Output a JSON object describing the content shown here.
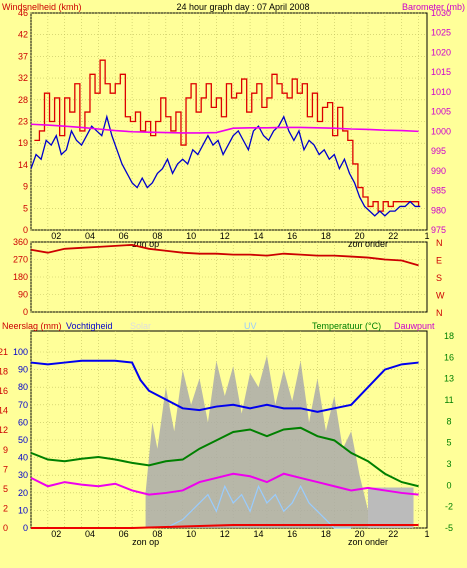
{
  "header": {
    "title": "24 hour graph day : 07 April 2008",
    "left_label": "Windsnelheid (kmh)",
    "right_label": "Barometer (mb)",
    "colors": {
      "title": "#000000",
      "wind_label": "#cc0000",
      "baro_label": "#cc00cc"
    }
  },
  "chart_data": [
    {
      "type": "line",
      "panel": "wind-barometer",
      "xlabel": "",
      "ylabel": "Windsnelheid (kmh)",
      "y2label": "Barometer (mb)",
      "x_ticks": [
        "02",
        "04",
        "06",
        "08",
        "10",
        "12",
        "14",
        "16",
        "18",
        "20",
        "22",
        "1"
      ],
      "y_ticks": [
        "0",
        "5",
        "9",
        "14",
        "19",
        "23",
        "28",
        "32",
        "37",
        "42",
        "46"
      ],
      "y_lim": [
        0,
        46
      ],
      "y2_ticks": [
        "975",
        "980",
        "985",
        "990",
        "995",
        "1000",
        "1005",
        "1010",
        "1015",
        "1020",
        "1025",
        "1030"
      ],
      "y2_lim": [
        975,
        1030
      ],
      "series": [
        {
          "key": "gust",
          "color": "#dd0000",
          "axis": "left",
          "step": true,
          "x": [
            0.2,
            0.5,
            0.8,
            1.1,
            1.4,
            1.7,
            2.0,
            2.3,
            2.6,
            2.9,
            3.2,
            3.5,
            3.8,
            4.1,
            4.4,
            4.7,
            5.0,
            5.3,
            5.6,
            5.9,
            6.2,
            6.5,
            6.8,
            7.1,
            7.4,
            7.7,
            8.0,
            8.3,
            8.6,
            8.9,
            9.2,
            9.5,
            9.8,
            10.1,
            10.4,
            10.7,
            11.0,
            11.3,
            11.6,
            11.9,
            12.2,
            12.5,
            12.8,
            13.1,
            13.4,
            13.7,
            14.0,
            14.3,
            14.6,
            14.9,
            15.2,
            15.5,
            15.8,
            16.1,
            16.4,
            16.7,
            17.0,
            17.3,
            17.6,
            17.9,
            18.2,
            18.5,
            18.8,
            19.1,
            19.4,
            19.7,
            20.0,
            20.3,
            20.6,
            20.9,
            21.2,
            21.5,
            21.8,
            22.1,
            22.4,
            22.7,
            23.0
          ],
          "y": [
            19,
            21,
            29,
            23,
            28,
            20,
            28,
            25,
            31,
            21,
            25,
            33,
            29,
            36,
            31,
            29,
            31,
            33,
            24,
            23,
            25,
            21,
            23,
            20,
            23,
            28,
            24,
            21,
            25,
            18,
            28,
            31,
            25,
            28,
            31,
            26,
            28,
            24,
            31,
            28,
            29,
            32,
            25,
            29,
            31,
            26,
            28,
            33,
            31,
            29,
            28,
            32,
            29,
            31,
            24,
            29,
            23,
            26,
            27,
            20,
            26,
            21,
            19,
            14,
            9,
            7,
            5,
            6,
            4,
            6,
            5,
            6,
            6,
            6,
            6,
            6,
            5
          ]
        },
        {
          "key": "average",
          "color": "#0000cc",
          "axis": "left",
          "step": false,
          "x": [
            0.0,
            0.3,
            0.6,
            0.9,
            1.2,
            1.5,
            1.8,
            2.1,
            2.4,
            2.7,
            3.0,
            3.3,
            3.6,
            3.9,
            4.2,
            4.5,
            4.8,
            5.1,
            5.4,
            5.7,
            6.0,
            6.3,
            6.6,
            6.9,
            7.2,
            7.5,
            7.8,
            8.1,
            8.4,
            8.7,
            9.0,
            9.3,
            9.6,
            9.9,
            10.2,
            10.5,
            10.8,
            11.1,
            11.4,
            11.7,
            12.0,
            12.3,
            12.6,
            12.9,
            13.2,
            13.5,
            13.8,
            14.1,
            14.4,
            14.7,
            15.0,
            15.3,
            15.6,
            15.9,
            16.2,
            16.5,
            16.8,
            17.1,
            17.4,
            17.7,
            18.0,
            18.3,
            18.6,
            18.9,
            19.2,
            19.5,
            19.8,
            20.1,
            20.4,
            20.7,
            21.0,
            21.3,
            21.6,
            21.9,
            22.2,
            22.5,
            22.8,
            23.1
          ],
          "y": [
            13,
            16,
            15,
            19,
            18,
            20,
            16,
            17,
            21,
            19,
            18,
            20,
            22,
            21,
            20,
            24,
            20,
            17,
            14,
            12,
            10,
            9,
            11,
            9,
            10,
            12,
            13,
            15,
            12,
            14,
            15,
            14,
            17,
            16,
            18,
            20,
            18,
            19,
            16,
            18,
            20,
            21,
            19,
            17,
            21,
            22,
            20,
            19,
            21,
            22,
            24,
            21,
            19,
            21,
            17,
            19,
            18,
            16,
            17,
            15,
            16,
            13,
            15,
            12,
            10,
            7,
            5,
            4,
            3,
            4,
            3,
            4,
            4,
            5,
            5,
            6,
            5,
            5
          ]
        },
        {
          "key": "barometer",
          "color": "#ee00ee",
          "axis": "right",
          "step": false,
          "x": [
            0,
            1,
            2,
            3,
            4,
            5,
            6,
            7,
            8,
            9,
            10,
            11,
            12,
            13,
            14,
            15,
            16,
            17,
            18,
            19,
            20,
            21,
            22,
            23
          ],
          "y": [
            1001.8,
            1001.6,
            1001.3,
            1001.0,
            1000.6,
            1000.2,
            999.9,
            999.8,
            999.7,
            999.6,
            999.6,
            999.7,
            1000.8,
            1000.9,
            1000.9,
            1001.0,
            1001.0,
            1000.9,
            1000.8,
            1000.6,
            1000.5,
            1000.3,
            1000.2,
            1000.0
          ]
        }
      ]
    },
    {
      "type": "line",
      "panel": "wind-direction",
      "y_ticks": [
        "0",
        "90",
        "180",
        "270",
        "360"
      ],
      "y_lim": [
        0,
        360
      ],
      "y2_ticks": [
        "N",
        "W",
        "S",
        "E",
        "N"
      ],
      "series": [
        {
          "key": "direction",
          "color": "#cc0000",
          "x": [
            0,
            1,
            2,
            3,
            4,
            5,
            6,
            7,
            8,
            9,
            10,
            11,
            12,
            13,
            14,
            15,
            16,
            17,
            18,
            19,
            20,
            21,
            22,
            23
          ],
          "y": [
            320,
            305,
            325,
            330,
            335,
            340,
            345,
            325,
            315,
            305,
            300,
            300,
            295,
            295,
            290,
            300,
            295,
            290,
            290,
            285,
            280,
            270,
            265,
            240
          ]
        }
      ]
    },
    {
      "type": "area",
      "panel": "humidity-temperature",
      "left_label": "Neerslag (mm)",
      "left_label2": "Vochtigheid",
      "solar_label": "Solar",
      "uv_label": "UV",
      "right_label": "Temperatuur (°C)",
      "right_label2": "Dauwpunt",
      "y_ticks": [
        "0",
        "10",
        "20",
        "30",
        "40",
        "50",
        "60",
        "70",
        "80",
        "90",
        "100"
      ],
      "y_lim": [
        0,
        100
      ],
      "y2_ticks": [
        "-5",
        "-2",
        "0",
        "3",
        "5",
        "8",
        "11",
        "13",
        "16",
        "18"
      ],
      "y2_lim": [
        -5,
        18
      ],
      "rain_ticks": [
        "0",
        "2",
        "5",
        "7",
        "9",
        "12",
        "14",
        "16",
        "18",
        "21"
      ],
      "series": [
        {
          "key": "humidity",
          "color": "#0000ee",
          "axis": "left",
          "x": [
            0,
            1,
            2,
            3,
            4,
            5,
            6,
            6.5,
            7,
            8,
            9,
            10,
            11,
            12,
            13,
            14,
            15,
            16,
            17,
            18,
            19,
            20,
            21,
            22,
            23
          ],
          "y": [
            94,
            93,
            94,
            95,
            95,
            95,
            94,
            84,
            78,
            73,
            68,
            67,
            69,
            70,
            68,
            70,
            68,
            68,
            66,
            68,
            70,
            80,
            90,
            93,
            94
          ]
        },
        {
          "key": "temperature",
          "color": "#008000",
          "axis": "right",
          "x": [
            0,
            1,
            2,
            3,
            4,
            5,
            6,
            7,
            8,
            9,
            10,
            11,
            12,
            13,
            14,
            15,
            16,
            17,
            18,
            19,
            20,
            21,
            22,
            23
          ],
          "y": [
            4.0,
            3.2,
            3.0,
            3.3,
            3.5,
            3.2,
            2.8,
            2.5,
            3.0,
            3.2,
            4.5,
            5.5,
            6.5,
            6.8,
            6.0,
            6.8,
            7.0,
            6.0,
            5.5,
            4.0,
            3.0,
            1.5,
            0.5,
            0.0
          ]
        },
        {
          "key": "dewpoint",
          "color": "#ee00ee",
          "axis": "right",
          "x": [
            0,
            1,
            2,
            3,
            4,
            5,
            6,
            7,
            8,
            9,
            10,
            11,
            12,
            13,
            14,
            15,
            16,
            17,
            18,
            19,
            20,
            21,
            22,
            23
          ],
          "y": [
            1.0,
            0.0,
            0.5,
            0.2,
            0.0,
            0.3,
            -0.5,
            -1.0,
            -0.8,
            -0.5,
            0.5,
            1.0,
            1.5,
            1.2,
            0.5,
            1.5,
            1.0,
            0.5,
            0.0,
            -0.5,
            -0.2,
            -0.5,
            -0.8,
            -1.0
          ]
        },
        {
          "key": "solar",
          "color": "#aaaaaa",
          "axis": "left",
          "x": [
            6.8,
            7.2,
            7.5,
            8,
            8.5,
            9,
            9.5,
            10,
            10.5,
            11,
            11.5,
            12,
            12.5,
            13,
            13.5,
            14,
            14.5,
            15,
            15.5,
            16,
            16.5,
            17,
            17.5,
            18,
            18.5,
            19,
            19.5,
            20
          ],
          "y": [
            20,
            60,
            45,
            80,
            55,
            90,
            70,
            85,
            60,
            95,
            75,
            92,
            65,
            88,
            80,
            98,
            70,
            90,
            72,
            95,
            60,
            85,
            55,
            75,
            45,
            55,
            30,
            10
          ]
        },
        {
          "key": "uv",
          "color": "#99ccff",
          "axis": "right",
          "x": [
            8,
            9,
            10,
            10.5,
            11,
            11.5,
            12,
            12.5,
            13,
            13.5,
            14,
            14.5,
            15,
            15.5,
            16,
            16.5,
            17,
            17.5,
            18,
            19
          ],
          "y": [
            -5,
            -4,
            -2,
            -1,
            -3,
            0,
            -2,
            -1,
            -3,
            0,
            -2,
            -1,
            -3,
            -2,
            0,
            -2,
            -3,
            -4,
            -5,
            -5
          ]
        },
        {
          "key": "rain",
          "color": "#ee0000",
          "axis": "rain",
          "x": [
            0,
            6,
            12,
            18,
            23
          ],
          "y": [
            0,
            0,
            0.5,
            0.5,
            0.5
          ]
        }
      ]
    }
  ],
  "time_axis": {
    "labels": [
      "02",
      "04",
      "06",
      "08",
      "10",
      "12",
      "14",
      "16",
      "18",
      "20",
      "22",
      "1"
    ],
    "sunrise_label": "zon op",
    "sunset_label": "zon onder",
    "sunrise_hour": 6.8,
    "sunset_hour": 20.0
  }
}
